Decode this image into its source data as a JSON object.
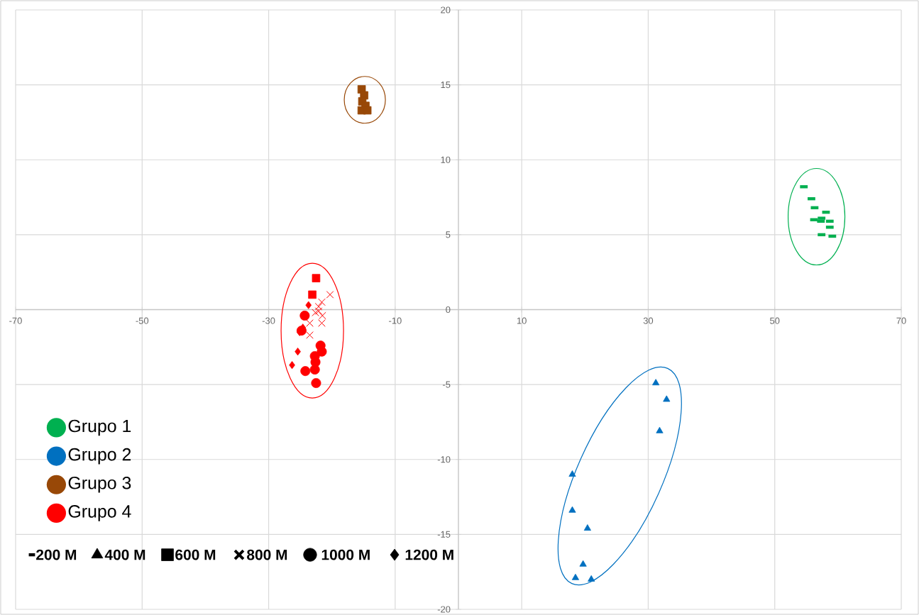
{
  "chart_data": {
    "type": "scatter",
    "xlim": [
      -70,
      70
    ],
    "ylim": [
      -20,
      20
    ],
    "xticks": [
      -70,
      -50,
      -30,
      -10,
      10,
      30,
      50,
      70
    ],
    "yticks": [
      -20,
      -15,
      -10,
      -5,
      0,
      5,
      10,
      15,
      20
    ],
    "grid": true,
    "legend": "bottom left",
    "series": [
      {
        "name": "Grupo 1",
        "color": "#00b050",
        "x": [
          54.6,
          55.8,
          56.3,
          58.1,
          56.2,
          57.4,
          57.3,
          58.7,
          58.7,
          57.4,
          59.1
        ],
        "values": [
          8.2,
          7.4,
          6.8,
          6.5,
          6.0,
          6.1,
          5.9,
          5.9,
          5.5,
          5.0,
          4.9
        ]
      },
      {
        "name": "Grupo 2",
        "color": "#0070c0",
        "marker": "triangle",
        "x": [
          31.2,
          32.9,
          31.8,
          18.0,
          18.0,
          20.4,
          19.7,
          18.5,
          21.0
        ],
        "values": [
          -4.9,
          -6.0,
          -8.1,
          -11.0,
          -13.4,
          -14.6,
          -17.0,
          -17.9,
          -18.0
        ]
      },
      {
        "name": "Grupo 3",
        "color": "#984807",
        "marker": "square",
        "x": [
          -15.3,
          -14.9,
          -15.2,
          -14.7,
          -15.3,
          -14.4
        ],
        "values": [
          14.7,
          14.3,
          13.9,
          13.6,
          13.3,
          13.3
        ]
      },
      {
        "name": "Grupo 4",
        "color": "#ff0000",
        "marker": "square",
        "x": [
          -22.5,
          -23.1
        ],
        "values": [
          2.1,
          1.0
        ]
      },
      {
        "color": "#ff0000",
        "marker": "cross",
        "x": [
          -20.3,
          -21.6,
          -22.1,
          -22.1,
          -21.5,
          -21.6,
          -23.5,
          -23.5,
          -22.6
        ],
        "values": [
          1.0,
          0.5,
          0.2,
          -0.1,
          -0.4,
          -0.9,
          -0.9,
          -1.7,
          -0.2
        ]
      },
      {
        "color": "#ff0000",
        "marker": "circle",
        "x": [
          -24.3,
          -24.8,
          -21.8,
          -21.6,
          -22.7,
          -22.6,
          -22.7,
          -24.2,
          -22.5
        ],
        "values": [
          -0.4,
          -1.4,
          -2.4,
          -2.8,
          -3.1,
          -3.5,
          -4.0,
          -4.1,
          -4.9
        ]
      },
      {
        "color": "#ff0000",
        "marker": "diamond",
        "x": [
          -23.7,
          -24.6,
          -25.1,
          -25.4,
          -26.3
        ],
        "values": [
          0.3,
          -1.2,
          -1.5,
          -2.8,
          -3.7
        ]
      }
    ],
    "annotations": [
      "200 M",
      "400 M",
      "600 M",
      "800 M",
      "1000 M",
      "1200 M"
    ]
  }
}
